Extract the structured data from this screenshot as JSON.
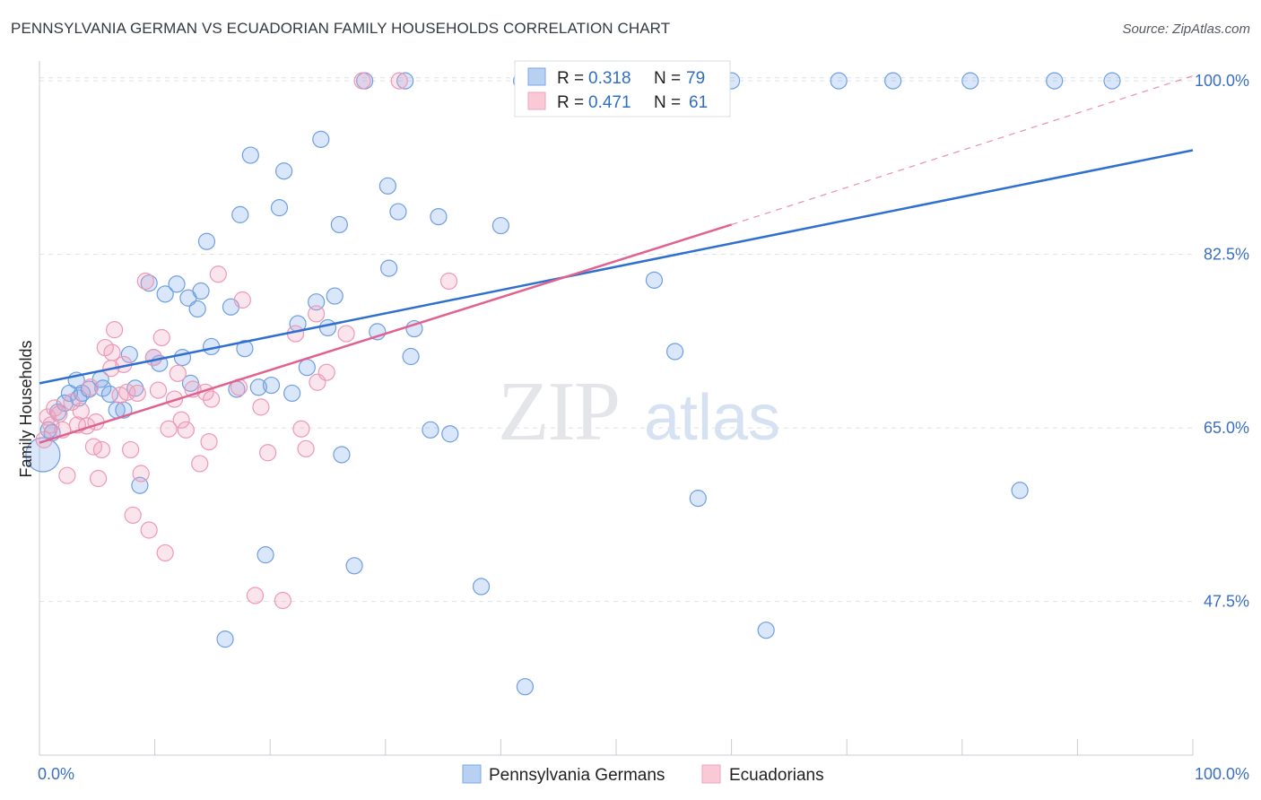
{
  "title": "PENNSYLVANIA GERMAN VS ECUADORIAN FAMILY HOUSEHOLDS CORRELATION CHART",
  "source": "Source: ZipAtlas.com",
  "watermark": {
    "zip": "ZIP",
    "atlas": "atlas"
  },
  "colors": {
    "blue": "#7aa7e8",
    "blue_line": "#2f6fd0",
    "pink": "#f0a2bc",
    "pink_line": "#e0628e",
    "tick_text": "#3a6fc4",
    "grid": "#dde1e6"
  },
  "legend": {
    "rows": [
      {
        "r_label": "R =",
        "r_value": "0.318",
        "n_label": "N =",
        "n_value": "79"
      },
      {
        "r_label": "R =",
        "r_value": "0.471",
        "n_label": "N =",
        "n_value": "61"
      }
    ]
  },
  "chart_data": {
    "type": "scatter",
    "ylabel": "Family Households",
    "xlim": [
      0,
      100
    ],
    "ylim": [
      32,
      102
    ],
    "x_tick_labels": [
      "0.0%",
      "100.0%"
    ],
    "y_ticks": [
      47.5,
      65.0,
      82.5,
      100.0
    ],
    "y_tick_labels": [
      "47.5%",
      "65.0%",
      "82.5%",
      "100.0%"
    ],
    "grid": true,
    "legend_position": "top-center",
    "series": [
      {
        "name": "Pennsylvania Germans",
        "color": "#7aa7e8",
        "trend": {
          "x": [
            0,
            100
          ],
          "y": [
            69.5,
            93.0
          ],
          "dashed_from": null
        },
        "points": [
          [
            0.3,
            62.3
          ],
          [
            0.8,
            64.8
          ],
          [
            1.1,
            64.5
          ],
          [
            1.6,
            66.6
          ],
          [
            2.2,
            67.5
          ],
          [
            2.6,
            68.5
          ],
          [
            3.2,
            69.8
          ],
          [
            3.4,
            68.0
          ],
          [
            3.7,
            68.5
          ],
          [
            4.3,
            68.9
          ],
          [
            5.3,
            69.9
          ],
          [
            5.5,
            69.0
          ],
          [
            6.1,
            68.4
          ],
          [
            6.7,
            66.8
          ],
          [
            7.3,
            66.8
          ],
          [
            7.8,
            72.4
          ],
          [
            8.3,
            69.0
          ],
          [
            8.7,
            59.2
          ],
          [
            9.5,
            79.6
          ],
          [
            9.9,
            72.1
          ],
          [
            10.4,
            71.5
          ],
          [
            10.9,
            78.5
          ],
          [
            11.9,
            79.5
          ],
          [
            12.4,
            72.1
          ],
          [
            12.9,
            78.1
          ],
          [
            13.1,
            69.5
          ],
          [
            13.7,
            77.0
          ],
          [
            14.0,
            78.8
          ],
          [
            14.5,
            83.8
          ],
          [
            14.9,
            73.2
          ],
          [
            16.1,
            43.7
          ],
          [
            16.6,
            77.2
          ],
          [
            17.1,
            68.9
          ],
          [
            17.4,
            86.5
          ],
          [
            17.8,
            73.0
          ],
          [
            18.3,
            92.5
          ],
          [
            19.0,
            69.1
          ],
          [
            19.6,
            52.2
          ],
          [
            20.1,
            69.3
          ],
          [
            20.8,
            87.2
          ],
          [
            21.2,
            90.9
          ],
          [
            21.9,
            68.5
          ],
          [
            22.4,
            75.5
          ],
          [
            23.2,
            71.1
          ],
          [
            24.0,
            77.7
          ],
          [
            24.4,
            94.1
          ],
          [
            25.0,
            75.1
          ],
          [
            25.6,
            78.3
          ],
          [
            26.0,
            85.5
          ],
          [
            26.2,
            62.3
          ],
          [
            27.3,
            51.1
          ],
          [
            28.2,
            100.0
          ],
          [
            29.3,
            74.7
          ],
          [
            30.2,
            89.4
          ],
          [
            30.3,
            81.1
          ],
          [
            31.1,
            86.8
          ],
          [
            31.7,
            100.0
          ],
          [
            32.2,
            72.2
          ],
          [
            32.5,
            75.0
          ],
          [
            33.9,
            64.8
          ],
          [
            34.6,
            86.3
          ],
          [
            35.6,
            64.4
          ],
          [
            38.3,
            49.0
          ],
          [
            40.0,
            85.4
          ],
          [
            41.8,
            100.0
          ],
          [
            42.1,
            38.9
          ],
          [
            43.3,
            100.0
          ],
          [
            51.4,
            100.0
          ],
          [
            53.3,
            79.9
          ],
          [
            55.1,
            72.7
          ],
          [
            57.1,
            57.9
          ],
          [
            60.0,
            100.0
          ],
          [
            63.0,
            44.6
          ],
          [
            69.3,
            100.0
          ],
          [
            74.0,
            100.0
          ],
          [
            80.7,
            100.0
          ],
          [
            85.0,
            58.7
          ],
          [
            88.0,
            100.0
          ],
          [
            93.0,
            100.0
          ]
        ]
      },
      {
        "name": "Ecuadorians",
        "color": "#f0a2bc",
        "trend": {
          "x": [
            0,
            60
          ],
          "y": [
            63.5,
            85.5
          ],
          "dashed_to": [
            100,
            100.5
          ]
        },
        "points": [
          [
            0.4,
            63.8
          ],
          [
            0.7,
            66.1
          ],
          [
            1.0,
            65.3
          ],
          [
            1.3,
            67.0
          ],
          [
            1.7,
            66.4
          ],
          [
            2.0,
            64.8
          ],
          [
            2.4,
            60.2
          ],
          [
            2.8,
            67.6
          ],
          [
            3.3,
            65.3
          ],
          [
            3.6,
            66.7
          ],
          [
            4.1,
            65.2
          ],
          [
            4.4,
            69.1
          ],
          [
            4.7,
            63.1
          ],
          [
            4.9,
            65.6
          ],
          [
            5.1,
            59.9
          ],
          [
            5.4,
            62.8
          ],
          [
            5.7,
            73.1
          ],
          [
            6.2,
            71.0
          ],
          [
            6.3,
            72.6
          ],
          [
            6.5,
            74.9
          ],
          [
            7.0,
            68.3
          ],
          [
            7.3,
            71.4
          ],
          [
            7.6,
            68.6
          ],
          [
            7.9,
            62.8
          ],
          [
            8.1,
            56.2
          ],
          [
            8.5,
            68.5
          ],
          [
            8.8,
            60.4
          ],
          [
            9.2,
            79.8
          ],
          [
            9.5,
            54.7
          ],
          [
            9.9,
            72.1
          ],
          [
            10.3,
            68.8
          ],
          [
            10.6,
            74.1
          ],
          [
            10.9,
            52.4
          ],
          [
            11.2,
            64.9
          ],
          [
            11.7,
            67.9
          ],
          [
            12.0,
            70.5
          ],
          [
            12.3,
            65.8
          ],
          [
            12.7,
            64.8
          ],
          [
            13.3,
            68.9
          ],
          [
            13.9,
            61.4
          ],
          [
            14.4,
            68.6
          ],
          [
            14.7,
            63.6
          ],
          [
            14.9,
            67.9
          ],
          [
            15.5,
            80.5
          ],
          [
            17.3,
            69.1
          ],
          [
            17.6,
            77.9
          ],
          [
            18.7,
            48.1
          ],
          [
            19.2,
            67.1
          ],
          [
            19.8,
            62.5
          ],
          [
            21.1,
            47.6
          ],
          [
            22.2,
            74.5
          ],
          [
            22.7,
            64.9
          ],
          [
            23.1,
            62.9
          ],
          [
            24.0,
            76.5
          ],
          [
            24.1,
            69.6
          ],
          [
            24.9,
            70.6
          ],
          [
            26.6,
            74.5
          ],
          [
            28.0,
            100.0
          ],
          [
            31.2,
            100.0
          ],
          [
            35.5,
            79.8
          ],
          [
            59.0,
            100.0
          ]
        ]
      }
    ]
  }
}
